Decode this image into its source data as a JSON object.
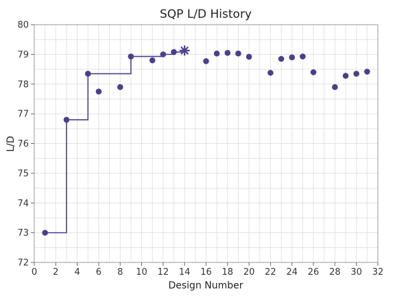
{
  "chart_data": {
    "type": "scatter",
    "title": "SQP L/D History",
    "xlabel": "Design Number",
    "ylabel": "L/D",
    "xlim": [
      0,
      32
    ],
    "ylim": [
      72,
      80
    ],
    "xticks": [
      0,
      2,
      4,
      6,
      8,
      10,
      12,
      14,
      16,
      18,
      20,
      22,
      24,
      26,
      28,
      30,
      32
    ],
    "yticks": [
      72,
      73,
      74,
      75,
      76,
      77,
      78,
      79,
      80
    ],
    "grid": true,
    "colors": {
      "series": "#4b3f8c",
      "step": "#4b3f8c"
    },
    "series": [
      {
        "marker": "circle",
        "points": [
          {
            "x": 1,
            "y": 73.0
          },
          {
            "x": 3,
            "y": 76.8
          },
          {
            "x": 5,
            "y": 78.35
          },
          {
            "x": 6,
            "y": 77.75
          },
          {
            "x": 8,
            "y": 77.9
          },
          {
            "x": 9,
            "y": 78.93
          },
          {
            "x": 11,
            "y": 78.8
          },
          {
            "x": 12,
            "y": 79.0
          },
          {
            "x": 13,
            "y": 79.08
          },
          {
            "x": 16,
            "y": 78.77
          },
          {
            "x": 17,
            "y": 79.03
          },
          {
            "x": 18,
            "y": 79.05
          },
          {
            "x": 19,
            "y": 79.03
          },
          {
            "x": 20,
            "y": 78.92
          },
          {
            "x": 22,
            "y": 78.38
          },
          {
            "x": 23,
            "y": 78.85
          },
          {
            "x": 24,
            "y": 78.9
          },
          {
            "x": 25,
            "y": 78.93
          },
          {
            "x": 26,
            "y": 78.4
          },
          {
            "x": 28,
            "y": 77.9
          },
          {
            "x": 29,
            "y": 78.28
          },
          {
            "x": 30,
            "y": 78.35
          },
          {
            "x": 31,
            "y": 78.42
          }
        ]
      },
      {
        "marker": "asterisk",
        "points": [
          {
            "x": 14,
            "y": 79.13
          }
        ]
      }
    ],
    "best_step": [
      {
        "x": 1,
        "y": 73.0
      },
      {
        "x": 3,
        "y": 76.8
      },
      {
        "x": 5,
        "y": 78.35
      },
      {
        "x": 9,
        "y": 78.93
      },
      {
        "x": 12,
        "y": 79.0
      },
      {
        "x": 13,
        "y": 79.08
      },
      {
        "x": 14,
        "y": 79.13
      }
    ]
  }
}
